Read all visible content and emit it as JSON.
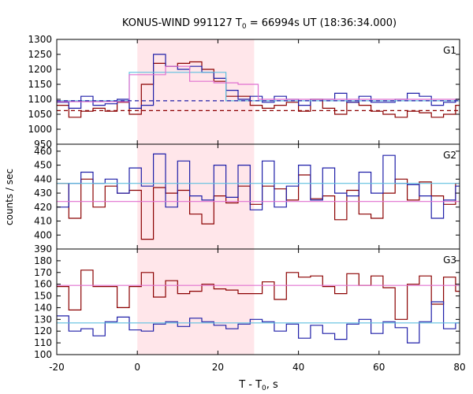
{
  "chart_data": {
    "type": "line",
    "title_main": "KONUS-WIND 991127 T",
    "title_sub": "0",
    "title_rest": " = 66994s UT (18:36:34.000)",
    "xlabel_main": "T - T",
    "xlabel_sub": "0",
    "xlabel_rest": ", s",
    "ylabel": "counts / sec",
    "xlim": [
      -20,
      80
    ],
    "x_ticks": [
      -20,
      0,
      20,
      40,
      60,
      80
    ],
    "shaded_region": [
      0,
      29
    ],
    "colors": {
      "dark_red": "#8b0000",
      "blue": "#1f1fa8",
      "light_blue": "#5fbfdf",
      "pink": "#e070d0",
      "shade": "#ffe6ea"
    },
    "panels": [
      {
        "label": "G1",
        "ylim": [
          950,
          1300
        ],
        "y_ticks": [
          950,
          1000,
          1050,
          1100,
          1150,
          1200,
          1250,
          1300
        ],
        "bin_start": -20,
        "bin_width": 3,
        "series": [
          {
            "color": "dark_red",
            "dashed": false,
            "values": [
              1080,
              1040,
              1060,
              1070,
              1060,
              1090,
              1050,
              1150,
              1220,
              1210,
              1220,
              1225,
              1200,
              1160,
              1110,
              1110,
              1080,
              1070,
              1080,
              1090,
              1060,
              1100,
              1070,
              1050,
              1090,
              1080,
              1060,
              1050,
              1040,
              1060,
              1055,
              1040,
              1050,
              1080
            ]
          },
          {
            "color": "blue",
            "dashed": false,
            "values": [
              1090,
              1070,
              1110,
              1080,
              1085,
              1100,
              1070,
              1080,
              1250,
              1210,
              1200,
              1210,
              1190,
              1170,
              1130,
              1100,
              1110,
              1090,
              1110,
              1100,
              1080,
              1100,
              1100,
              1120,
              1090,
              1110,
              1090,
              1090,
              1100,
              1120,
              1110,
              1080,
              1090,
              1100
            ]
          },
          {
            "color": "light_blue",
            "dashed": false,
            "steps": [
              [
                -20,
                1095
              ],
              [
                -2,
                1190
              ],
              [
                22,
                1095
              ],
              [
                80,
                1095
              ]
            ]
          },
          {
            "color": "pink",
            "dashed": false,
            "steps": [
              [
                -20,
                1092
              ],
              [
                -2,
                1182
              ],
              [
                7,
                1210
              ],
              [
                13,
                1160
              ],
              [
                19,
                1155
              ],
              [
                25,
                1150
              ],
              [
                30,
                1100
              ],
              [
                80,
                1100
              ]
            ]
          },
          {
            "color": "blue",
            "dashed": true,
            "steps": [
              [
                -20,
                1095
              ],
              [
                80,
                1095
              ]
            ]
          },
          {
            "color": "dark_red",
            "dashed": true,
            "steps": [
              [
                -20,
                1062
              ],
              [
                80,
                1062
              ]
            ]
          }
        ]
      },
      {
        "label": "G2",
        "ylim": [
          390,
          465
        ],
        "y_ticks": [
          390,
          400,
          410,
          420,
          430,
          440,
          450,
          460
        ],
        "bin_start": -20,
        "bin_width": 3,
        "series": [
          {
            "color": "dark_red",
            "dashed": false,
            "values": [
              437,
              412,
              440,
              420,
              435,
              430,
              432,
              397,
              434,
              430,
              432,
              415,
              408,
              428,
              423,
              435,
              422,
              435,
              433,
              425,
              443,
              426,
              428,
              411,
              432,
              415,
              412,
              430,
              440,
              425,
              438,
              428,
              422,
              437
            ]
          },
          {
            "color": "blue",
            "dashed": false,
            "values": [
              420,
              437,
              445,
              437,
              440,
              430,
              448,
              435,
              458,
              420,
              453,
              428,
              425,
              450,
              427,
              450,
              418,
              453,
              420,
              435,
              450,
              425,
              448,
              430,
              428,
              445,
              430,
              457,
              437,
              436,
              428,
              412,
              425,
              435
            ]
          },
          {
            "color": "light_blue",
            "dashed": false,
            "steps": [
              [
                -20,
                437
              ],
              [
                80,
                437
              ]
            ]
          },
          {
            "color": "pink",
            "dashed": false,
            "steps": [
              [
                -20,
                424
              ],
              [
                80,
                424
              ]
            ]
          }
        ]
      },
      {
        "label": "G3",
        "ylim": [
          100,
          190
        ],
        "y_ticks": [
          100,
          110,
          120,
          130,
          140,
          150,
          160,
          170,
          180
        ],
        "bin_start": -20,
        "bin_width": 3,
        "series": [
          {
            "color": "dark_red",
            "dashed": false,
            "values": [
              158,
              138,
              172,
              158,
              158,
              140,
              158,
              170,
              149,
              163,
              152,
              154,
              160,
              156,
              155,
              152,
              152,
              162,
              147,
              170,
              166,
              167,
              158,
              152,
              169,
              159,
              167,
              157,
              130,
              160,
              167,
              143,
              166,
              154
            ]
          },
          {
            "color": "blue",
            "dashed": false,
            "values": [
              133,
              120,
              122,
              116,
              128,
              132,
              121,
              120,
              126,
              128,
              124,
              131,
              128,
              125,
              122,
              126,
              130,
              128,
              120,
              126,
              114,
              125,
              118,
              113,
              126,
              130,
              118,
              128,
              123,
              110,
              128,
              145,
              122,
              127
            ]
          },
          {
            "color": "light_blue",
            "dashed": false,
            "steps": [
              [
                -20,
                127
              ],
              [
                80,
                127
              ]
            ]
          },
          {
            "color": "pink",
            "dashed": false,
            "steps": [
              [
                -20,
                159
              ],
              [
                80,
                159
              ]
            ]
          }
        ]
      }
    ]
  }
}
